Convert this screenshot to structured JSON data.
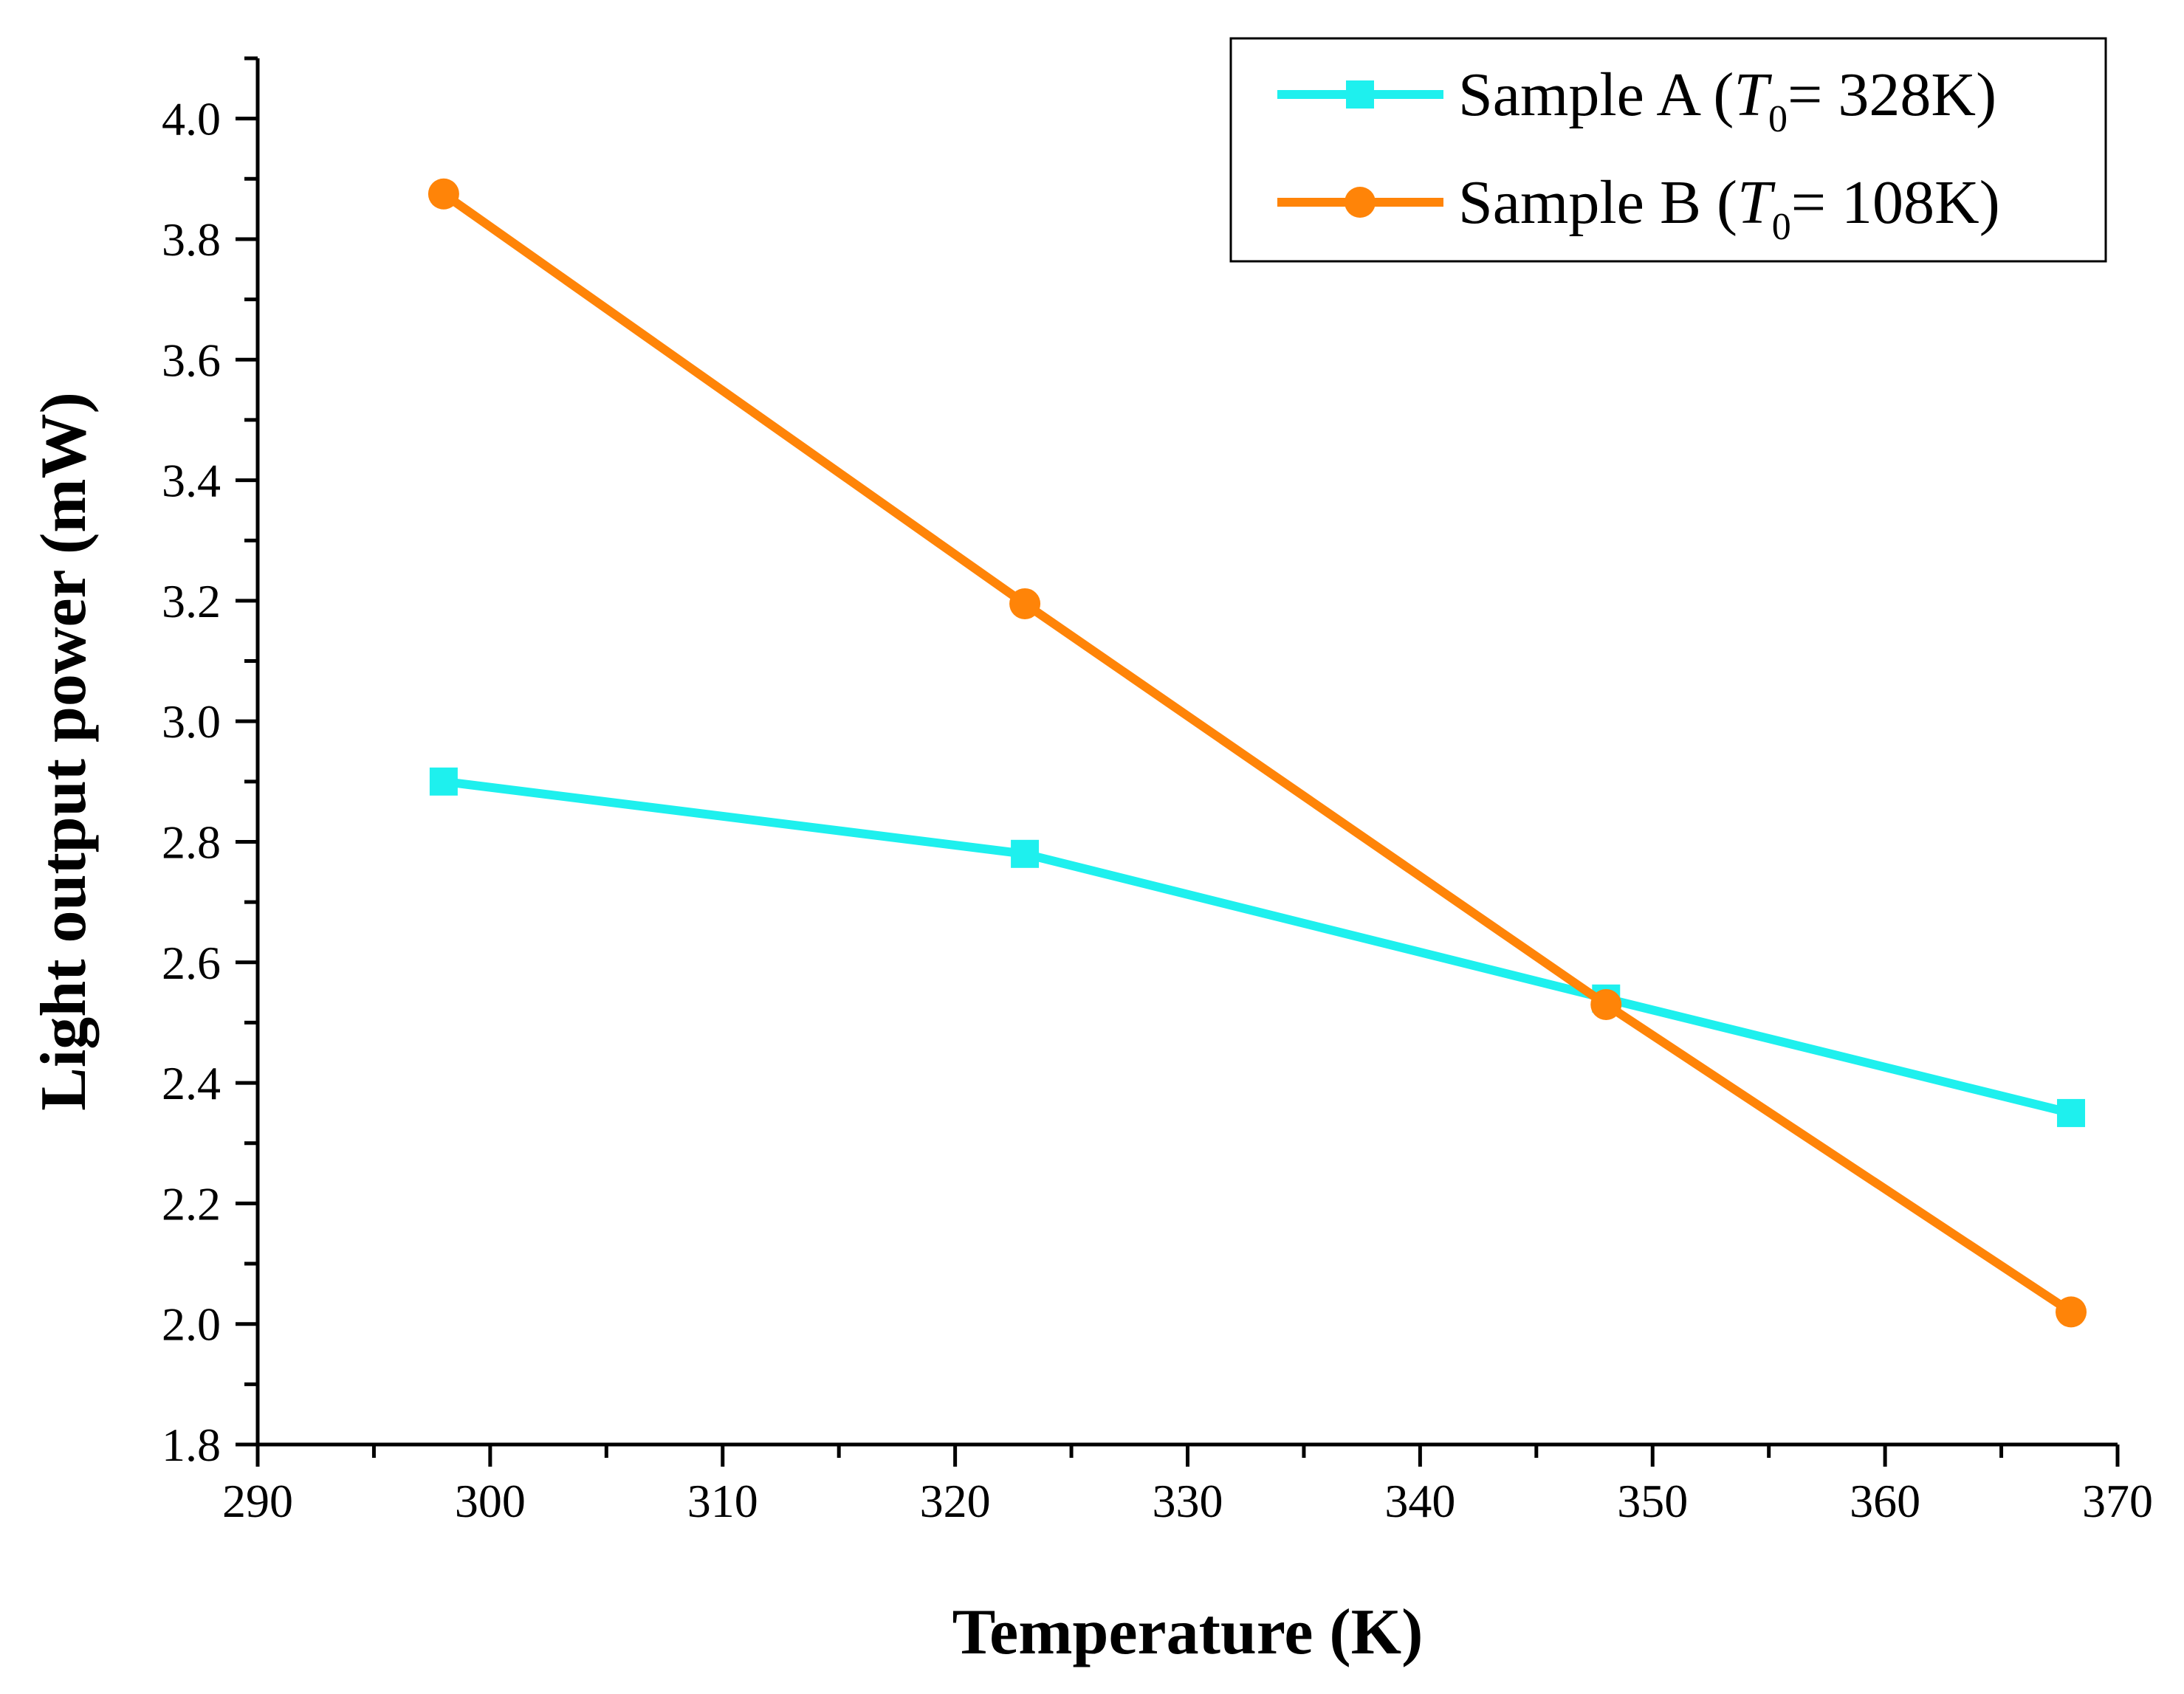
{
  "chart_data": {
    "type": "line",
    "title": "",
    "xlabel": "Temperature (K)",
    "ylabel": "Light output power (mW)",
    "xlim": [
      290,
      370
    ],
    "ylim": [
      1.8,
      4.1
    ],
    "xticks": [
      "290",
      "300",
      "310",
      "320",
      "330",
      "340",
      "350",
      "360",
      "370"
    ],
    "yticks": [
      "1.8",
      "2.0",
      "2.2",
      "2.4",
      "2.6",
      "2.8",
      "3.0",
      "3.2",
      "3.4",
      "3.6",
      "3.8",
      "4.0"
    ],
    "x": [
      298,
      323,
      348,
      368
    ],
    "series": [
      {
        "name": "Sample A",
        "legend_prefix": "Sample A (",
        "legend_T": "T",
        "legend_sub": "0",
        "legend_suffix": "= 328K)",
        "values": [
          2.9,
          2.78,
          2.54,
          2.35
        ],
        "marker": "square",
        "color": "#1ef0ee"
      },
      {
        "name": "Sample B",
        "legend_prefix": "Sample B (",
        "legend_T": "T",
        "legend_sub": "0",
        "legend_suffix": "= 108K)",
        "values": [
          3.875,
          3.195,
          2.53,
          2.02
        ],
        "marker": "circle",
        "color": "#ff8408"
      }
    ],
    "legend_position": "top-right",
    "grid": false
  }
}
